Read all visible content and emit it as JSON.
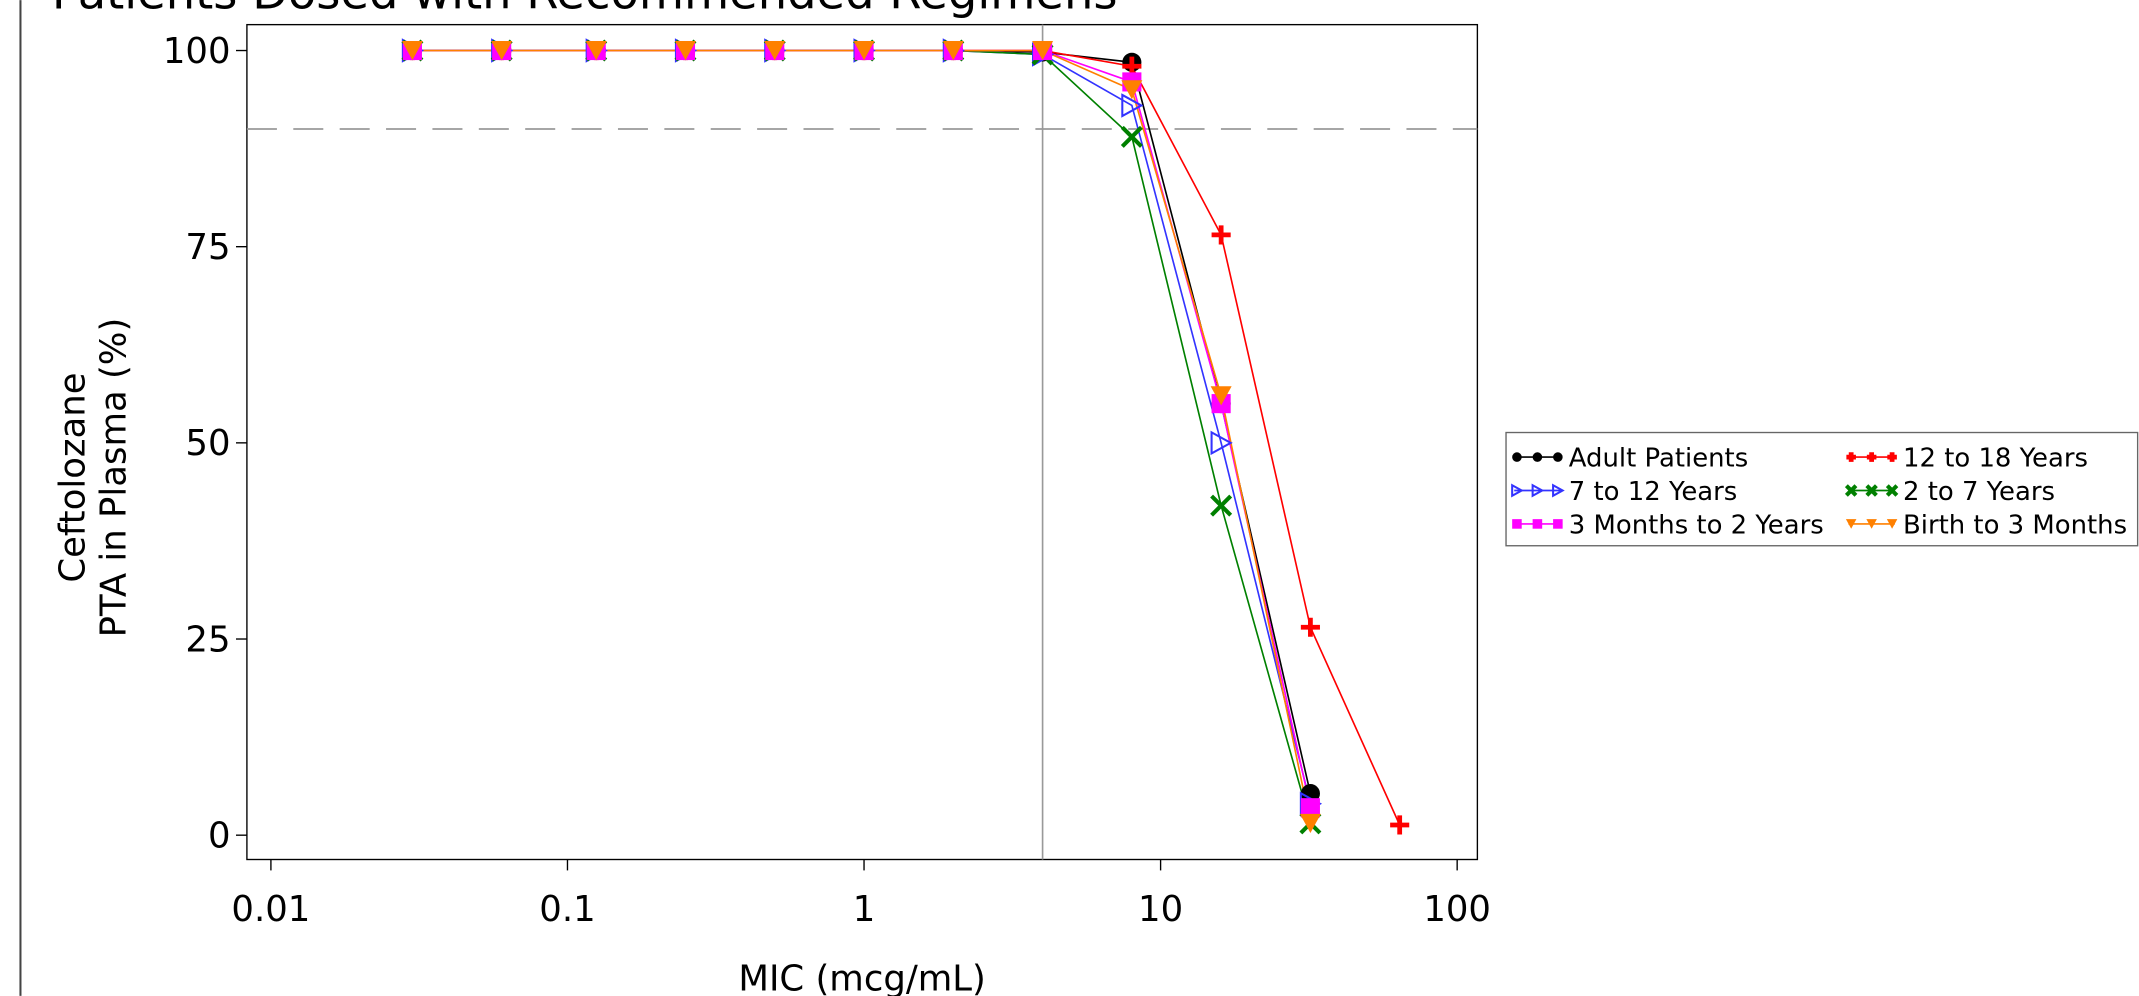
{
  "chart_data": {
    "type": "line",
    "title": "Patients Dosed with Recommended Regimens",
    "x_label": "MIC (mcg/mL)",
    "y_label": [
      "Ceftolozane",
      "PTA in Plasma (%)"
    ],
    "x_scale": "log",
    "x": [
      0.03,
      0.06,
      0.125,
      0.25,
      0.5,
      1,
      2,
      4,
      8,
      16,
      32,
      64
    ],
    "xlim": [
      0.0083,
      117
    ],
    "xticks": [
      0.01,
      0.1,
      1,
      10,
      100
    ],
    "ylim": [
      -3.1,
      103.3
    ],
    "yticks": [
      0,
      25,
      50,
      75,
      100
    ],
    "reference_lines": [
      {
        "axis": "y",
        "value": 90,
        "style": "dashed"
      },
      {
        "axis": "x",
        "value": 4,
        "style": "solid"
      }
    ],
    "legend_position": "right",
    "series": [
      {
        "name": "Adult Patients",
        "color": "#000000",
        "marker": "circle",
        "values": [
          100,
          100,
          100,
          100,
          100,
          100,
          100,
          99.8,
          98.5,
          55,
          5.3,
          null
        ]
      },
      {
        "name": "12 to 18 Years",
        "color": "#ff0000",
        "marker": "plus",
        "values": [
          100,
          100,
          100,
          100,
          100,
          100,
          100,
          100,
          98,
          76.5,
          26.5,
          1.3
        ]
      },
      {
        "name": "7 to 12 Years",
        "color": "#3333ff",
        "marker": "triangle-right-open",
        "values": [
          100,
          100,
          100,
          100,
          100,
          100,
          100,
          99.5,
          93,
          50,
          4,
          null
        ]
      },
      {
        "name": "2 to 7 Years",
        "color": "#008000",
        "marker": "x",
        "values": [
          100,
          100,
          100,
          100,
          100,
          100,
          100,
          99.5,
          89,
          42,
          1.5,
          null
        ]
      },
      {
        "name": "3 Months to 2 Years",
        "color": "#ff00ff",
        "marker": "square",
        "values": [
          100,
          100,
          100,
          100,
          100,
          100,
          100,
          100,
          96,
          55,
          3.5,
          null
        ]
      },
      {
        "name": "Birth to 3 Months",
        "color": "#ff8000",
        "marker": "triangle-down",
        "values": [
          100,
          100,
          100,
          100,
          100,
          100,
          100,
          100,
          95,
          56,
          1.5,
          null
        ]
      }
    ]
  }
}
